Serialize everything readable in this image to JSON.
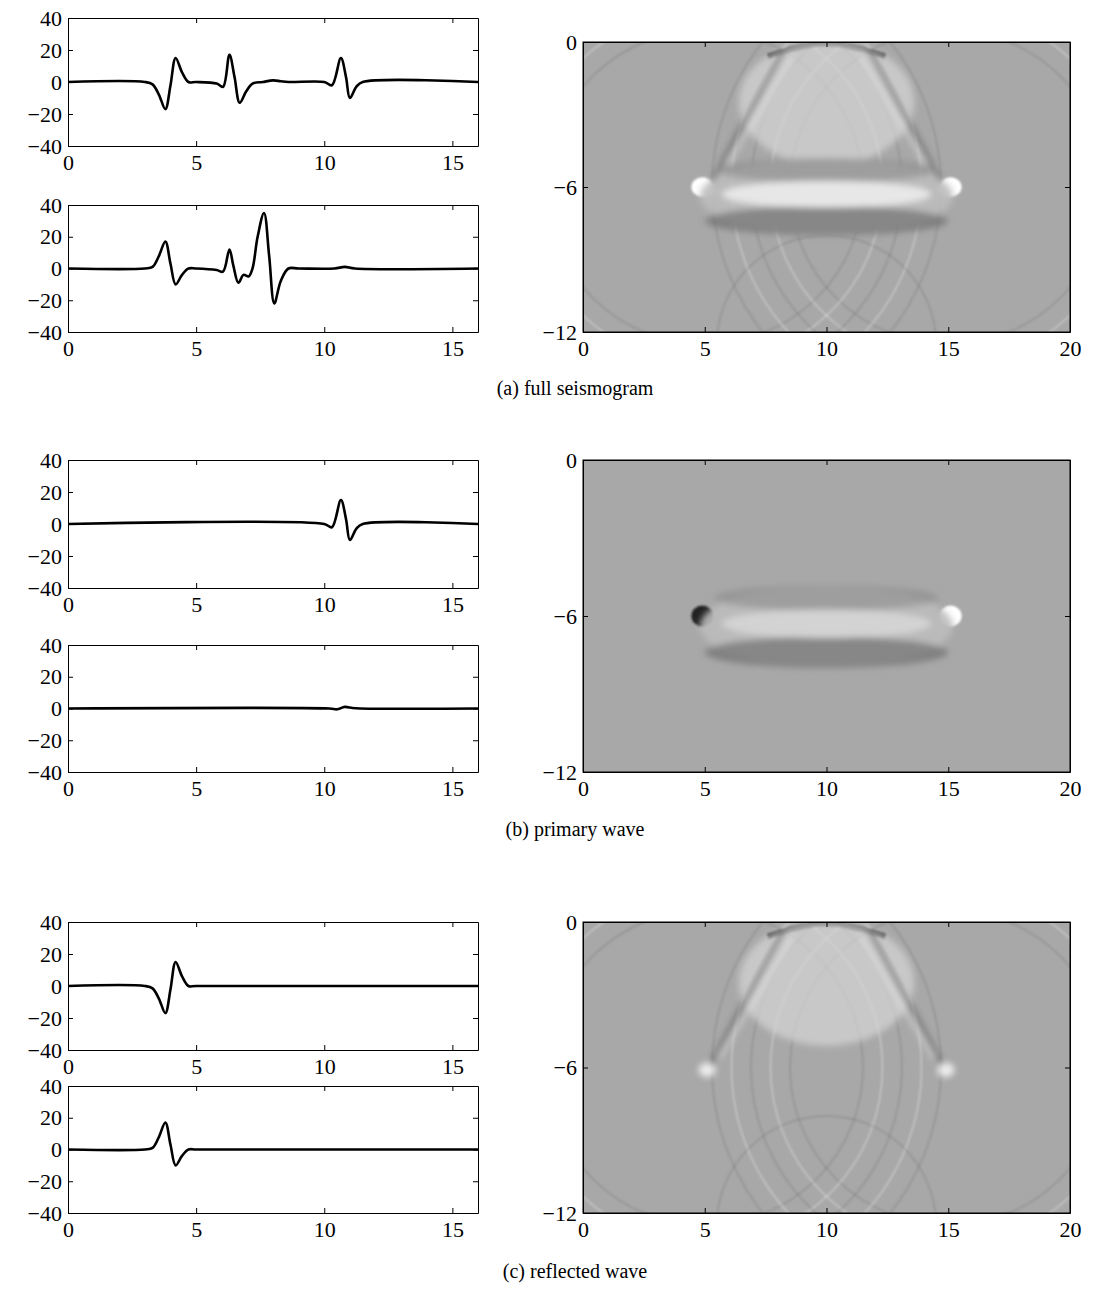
{
  "chart_data": [
    {
      "type": "line",
      "color": "#000000",
      "x": [
        0,
        3,
        3.3,
        3.55,
        3.8,
        4.0,
        4.2,
        4.45,
        4.7,
        5.0,
        5.8,
        6.05,
        6.3,
        6.5,
        6.7,
        6.95,
        7.2,
        7.6,
        8.0,
        8.3,
        8.6,
        10.0,
        10.3,
        10.65,
        10.85,
        11.0,
        11.25,
        11.5,
        16
      ],
      "values": [
        0,
        0,
        -1.5,
        -8,
        -17,
        -2,
        15,
        6,
        0,
        0,
        -1,
        -3,
        17,
        3,
        -13,
        -6,
        -1,
        0,
        1,
        0.5,
        0,
        0,
        -2,
        15,
        3,
        -10,
        -3,
        0,
        0
      ],
      "xlim": [
        0,
        16
      ],
      "xticks": [
        0,
        5,
        10,
        15
      ],
      "ylim": [
        -40,
        40
      ],
      "yticks": [
        {
          "value": -40,
          "label": "−40"
        },
        {
          "value": -20,
          "label": "−20"
        },
        0,
        20,
        40
      ]
    },
    {
      "type": "line",
      "color": "#000000",
      "x": [
        0,
        3,
        3.3,
        3.55,
        3.8,
        4.0,
        4.2,
        4.45,
        4.7,
        5.0,
        5.8,
        6.05,
        6.3,
        6.45,
        6.65,
        6.85,
        7.05,
        7.2,
        7.4,
        7.65,
        7.85,
        8.05,
        8.3,
        8.6,
        9.0,
        10.4,
        10.8,
        11.2,
        16
      ],
      "values": [
        0,
        0,
        1,
        8,
        17,
        3,
        -10,
        -4,
        0,
        0,
        -1,
        -2,
        12,
        2,
        -9,
        -4,
        -5,
        0,
        20,
        35,
        8,
        -22,
        -8,
        0,
        0,
        0,
        1,
        0,
        0
      ],
      "xlim": [
        0,
        16
      ],
      "xticks": [
        0,
        5,
        10,
        15
      ],
      "ylim": [
        -40,
        40
      ],
      "yticks": [
        {
          "value": -40,
          "label": "−40"
        },
        {
          "value": -20,
          "label": "−20"
        },
        0,
        20,
        40
      ]
    },
    {
      "type": "image",
      "xlim": [
        0,
        20
      ],
      "xticks": [
        0,
        5,
        10,
        15,
        20
      ],
      "ylim": [
        -12,
        0
      ],
      "yticks": [
        {
          "value": -12,
          "label": "−12"
        },
        {
          "value": -6,
          "label": "−6"
        },
        0
      ]
    },
    {
      "type": "line",
      "color": "#000000",
      "x": [
        0,
        10.0,
        10.3,
        10.65,
        10.85,
        11.0,
        11.25,
        11.5,
        16
      ],
      "values": [
        0,
        0,
        -2,
        15,
        3,
        -10,
        -3,
        0,
        0
      ],
      "xlim": [
        0,
        16
      ],
      "xticks": [
        0,
        5,
        10,
        15
      ],
      "ylim": [
        -40,
        40
      ],
      "yticks": [
        {
          "value": -40,
          "label": "−40"
        },
        {
          "value": -20,
          "label": "−20"
        },
        0,
        20,
        40
      ]
    },
    {
      "type": "line",
      "color": "#000000",
      "x": [
        0,
        10.2,
        10.5,
        10.8,
        11.1,
        11.4,
        16
      ],
      "values": [
        0,
        0,
        -0.5,
        1,
        0.3,
        0,
        0
      ],
      "xlim": [
        0,
        16
      ],
      "xticks": [
        0,
        5,
        10,
        15
      ],
      "ylim": [
        -40,
        40
      ],
      "yticks": [
        {
          "value": -40,
          "label": "−40"
        },
        {
          "value": -20,
          "label": "−20"
        },
        0,
        20,
        40
      ]
    },
    {
      "type": "image",
      "xlim": [
        0,
        20
      ],
      "xticks": [
        0,
        5,
        10,
        15,
        20
      ],
      "ylim": [
        -12,
        0
      ],
      "yticks": [
        {
          "value": -12,
          "label": "−12"
        },
        {
          "value": -6,
          "label": "−6"
        },
        0
      ]
    },
    {
      "type": "line",
      "color": "#000000",
      "x": [
        0,
        3,
        3.3,
        3.55,
        3.8,
        4.0,
        4.2,
        4.45,
        4.7,
        5.0,
        16
      ],
      "values": [
        0,
        0,
        -1.5,
        -8,
        -17,
        -2,
        15,
        6,
        0,
        0,
        0
      ],
      "xlim": [
        0,
        16
      ],
      "xticks": [
        0,
        5,
        10,
        15
      ],
      "ylim": [
        -40,
        40
      ],
      "yticks": [
        {
          "value": -40,
          "label": "−40"
        },
        {
          "value": -20,
          "label": "−20"
        },
        0,
        20,
        40
      ]
    },
    {
      "type": "line",
      "color": "#000000",
      "x": [
        0,
        3,
        3.3,
        3.55,
        3.8,
        4.0,
        4.2,
        4.45,
        4.7,
        5.0,
        16
      ],
      "values": [
        0,
        0,
        1,
        8,
        17,
        3,
        -10,
        -4,
        0,
        0,
        0
      ],
      "xlim": [
        0,
        16
      ],
      "xticks": [
        0,
        5,
        10,
        15
      ],
      "ylim": [
        -40,
        40
      ],
      "yticks": [
        {
          "value": -40,
          "label": "−40"
        },
        {
          "value": -20,
          "label": "−20"
        },
        0,
        20,
        40
      ]
    },
    {
      "type": "image",
      "xlim": [
        0,
        20
      ],
      "xticks": [
        0,
        5,
        10,
        15,
        20
      ],
      "ylim": [
        -12,
        0
      ],
      "yticks": [
        {
          "value": -12,
          "label": "−12"
        },
        {
          "value": -6,
          "label": "−6"
        },
        0
      ]
    }
  ],
  "captions": [
    "(a) full seismogram",
    "(b) primary wave",
    "(c) reflected wave"
  ]
}
